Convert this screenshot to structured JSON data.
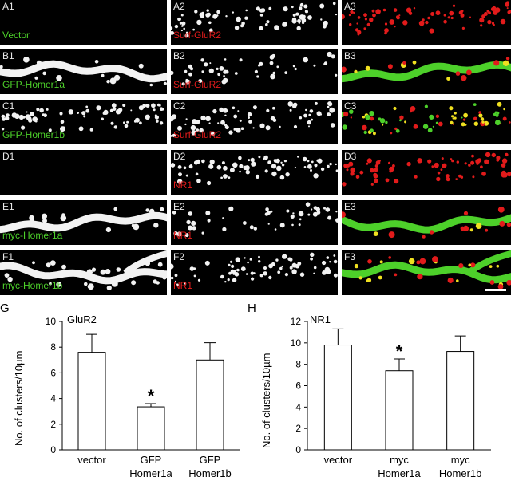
{
  "panels": [
    {
      "id": "A1",
      "caption": "Vector",
      "caption_color": "green",
      "kind": "empty"
    },
    {
      "id": "A2",
      "caption": "Surf-GluR2",
      "caption_color": "red",
      "kind": "puncta-white"
    },
    {
      "id": "A3",
      "caption": "",
      "caption_color": "",
      "kind": "puncta-red"
    },
    {
      "id": "B1",
      "caption": "GFP-Homer1a",
      "caption_color": "green",
      "kind": "dendrite-white"
    },
    {
      "id": "B2",
      "caption": "Surf-GluR2",
      "caption_color": "red",
      "kind": "puncta-white-sparse"
    },
    {
      "id": "B3",
      "caption": "",
      "caption_color": "",
      "kind": "dendrite-green"
    },
    {
      "id": "C1",
      "caption": "GFP-Homer1b",
      "caption_color": "green",
      "kind": "puncta-white"
    },
    {
      "id": "C2",
      "caption": "Surf-GluR2",
      "caption_color": "red",
      "kind": "puncta-white"
    },
    {
      "id": "C3",
      "caption": "",
      "caption_color": "",
      "kind": "puncta-yellow"
    },
    {
      "id": "D1",
      "caption": "",
      "caption_color": "",
      "kind": "empty"
    },
    {
      "id": "D2",
      "caption": "NR1",
      "caption_color": "red",
      "kind": "puncta-white"
    },
    {
      "id": "D3",
      "caption": "",
      "caption_color": "",
      "kind": "puncta-red"
    },
    {
      "id": "E1",
      "caption": "myc-Homer1a",
      "caption_color": "green",
      "kind": "dendrite-white"
    },
    {
      "id": "E2",
      "caption": "NR1",
      "caption_color": "red",
      "kind": "puncta-white-sparse"
    },
    {
      "id": "E3",
      "caption": "",
      "caption_color": "",
      "kind": "dendrite-green"
    },
    {
      "id": "F1",
      "caption": "myc-Homer1b",
      "caption_color": "green",
      "kind": "dendrite-white-spiny"
    },
    {
      "id": "F2",
      "caption": "NR1",
      "caption_color": "red",
      "kind": "puncta-white"
    },
    {
      "id": "F3",
      "caption": "",
      "caption_color": "",
      "kind": "dendrite-green-spiny"
    }
  ],
  "colors": {
    "green": "#4dd02a",
    "red": "#e21b1b",
    "yellow": "#f0e020",
    "white": "#f2f2f2"
  },
  "chart_data": [
    {
      "panel": "G",
      "type": "bar",
      "title": "GluR2",
      "ylabel": "No. of clusters/10µm",
      "ylim": [
        0,
        10
      ],
      "yticks": [
        0,
        2,
        4,
        6,
        8,
        10
      ],
      "categories": [
        [
          "vector"
        ],
        [
          "GFP",
          "Homer1a"
        ],
        [
          "GFP",
          "Homer1b"
        ]
      ],
      "values": [
        7.6,
        3.35,
        7.0
      ],
      "errors": [
        1.4,
        0.25,
        1.35
      ],
      "significance": [
        "",
        "*",
        ""
      ]
    },
    {
      "panel": "H",
      "type": "bar",
      "title": "NR1",
      "ylabel": "No. of clusters/10µm",
      "ylim": [
        0,
        12
      ],
      "yticks": [
        0,
        2,
        4,
        6,
        8,
        10,
        12
      ],
      "categories": [
        [
          "vector"
        ],
        [
          "myc",
          "Homer1a"
        ],
        [
          "myc",
          "Homer1b"
        ]
      ],
      "values": [
        9.8,
        7.4,
        9.2
      ],
      "errors": [
        1.5,
        1.1,
        1.45
      ],
      "significance": [
        "",
        "*",
        ""
      ]
    }
  ]
}
